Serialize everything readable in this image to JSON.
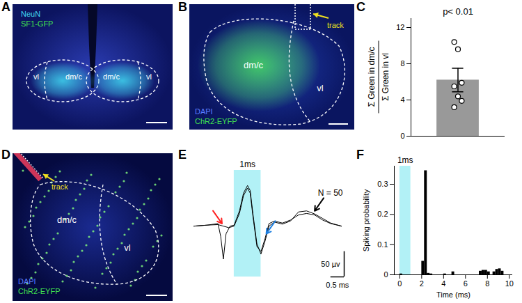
{
  "images": [
    {
      "panel": "A",
      "regions": [
        "vl",
        "dm/c",
        "dm/c",
        "vl"
      ],
      "stains": [
        {
          "text": "NeuN",
          "color": "#40d8f0"
        },
        {
          "text": "SF1-GFP",
          "color": "#40e050"
        }
      ]
    },
    {
      "panel": "B",
      "regions": [
        "dm/c",
        "vl"
      ],
      "annotation": "track",
      "stains": [
        {
          "text": "DAPI",
          "color": "#5a7cff"
        },
        {
          "text": "ChR2-EYFP",
          "color": "#40e050"
        }
      ]
    },
    {
      "panel": "D",
      "regions": [
        "dm/c",
        "vl"
      ],
      "annotation": "track",
      "stains": [
        {
          "text": "DAPI",
          "color": "#5a7cff"
        },
        {
          "text": "ChR2-EYFP",
          "color": "#40e050"
        }
      ]
    }
  ],
  "chart_data": [
    {
      "panel": "C",
      "type": "bar",
      "title": "p< 0.01",
      "ylabel": [
        "Σ Green in dm/c",
        "Σ Green in vl"
      ],
      "categories": [
        null
      ],
      "values": [
        6.2
      ],
      "error": [
        1.3
      ],
      "points": [
        10.4,
        9.6,
        5.9,
        5.5,
        4.4,
        3.9,
        3.2
      ],
      "color": "#999999",
      "ylim": [
        0,
        13
      ],
      "yticks": [
        0,
        4,
        8,
        12
      ]
    },
    {
      "panel": "E",
      "type": "line",
      "xlim": [
        0,
        5.6
      ],
      "ylim": [
        -100,
        110
      ],
      "tick_labels": false,
      "series": [
        {
          "color": "#000000",
          "x": [
            0,
            0.5,
            0.9,
            1.1,
            1.3,
            1.5,
            1.7,
            1.85,
            2.0,
            2.1,
            2.2,
            2.35,
            2.5,
            2.65,
            2.8,
            3.0,
            3.3,
            3.6,
            3.9,
            4.2,
            4.5,
            4.8,
            5.1,
            5.5
          ],
          "values": [
            0,
            2,
            3,
            0,
            -3,
            0,
            25,
            60,
            75,
            65,
            20,
            -40,
            -50,
            -25,
            5,
            10,
            6,
            12,
            22,
            25,
            22,
            12,
            5,
            0
          ]
        },
        {
          "color": "#000000",
          "x": [
            0,
            0.5,
            0.9,
            1.0,
            1.1,
            1.2,
            1.35,
            1.5,
            1.7,
            1.85,
            2.0,
            2.1,
            2.2,
            2.35,
            2.5,
            2.65,
            2.8,
            3.0,
            3.3,
            3.6,
            3.9,
            4.2,
            4.5,
            4.8,
            5.1,
            5.5
          ],
          "values": [
            0,
            2,
            5,
            -20,
            -65,
            -15,
            0,
            2,
            30,
            65,
            80,
            70,
            25,
            -35,
            -55,
            -30,
            0,
            8,
            4,
            10,
            28,
            30,
            24,
            15,
            6,
            0
          ]
        }
      ],
      "stimulus": {
        "x1": 1.5,
        "x2": 2.5,
        "label": "1ms",
        "color": "#7fe8f0"
      },
      "annotation": "N = 50",
      "arrows": [
        {
          "x": 1.05,
          "y": 5,
          "color": "#ff2020"
        },
        {
          "x": 2.7,
          "y": -15,
          "color": "#1e7fe0"
        },
        {
          "x": 4.5,
          "y": 30,
          "color": "#000000"
        }
      ],
      "scalebar": {
        "x": 0.5,
        "x_label": "0.5 ms",
        "y": 50,
        "y_label": "50 µv"
      }
    },
    {
      "panel": "F",
      "type": "histogram",
      "xlabel": "Time (ms)",
      "ylabel": "Spiking probability",
      "bins": [
        0,
        0.25,
        0.5,
        0.75,
        1,
        1.25,
        1.5,
        1.75,
        2,
        2.25,
        2.5,
        2.75,
        3,
        3.25,
        3.5,
        3.75,
        4,
        4.25,
        4.5,
        4.75,
        5,
        5.25,
        5.5,
        5.75,
        6,
        6.25,
        6.5,
        6.75,
        7,
        7.25,
        7.5,
        7.75,
        8,
        8.25,
        8.5,
        8.75,
        9,
        9.25,
        9.5,
        9.75,
        10
      ],
      "counts": [
        0.003,
        0,
        0,
        0,
        0,
        0,
        0,
        0,
        0.045,
        0.345,
        0.005,
        0.003,
        0,
        0,
        0,
        0,
        0.003,
        0,
        0,
        0.01,
        0,
        0,
        0,
        0,
        0,
        0,
        0,
        0,
        0,
        0.012,
        0.015,
        0.015,
        0.01,
        0,
        0.01,
        0.018,
        0.02,
        0.012,
        0,
        0
      ],
      "color": "#000000",
      "stimulus": {
        "x1": 0,
        "x2": 1,
        "label": "1ms",
        "color": "#7fe8f0"
      },
      "xlim": [
        -0.5,
        10.3
      ],
      "xticks": [
        0,
        2,
        4,
        6,
        8,
        10
      ],
      "ylim": [
        0,
        0.36
      ],
      "yticks": [
        0,
        0.1,
        0.2,
        0.3
      ]
    }
  ]
}
